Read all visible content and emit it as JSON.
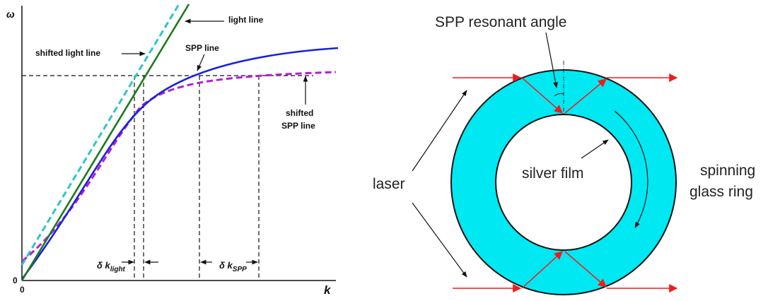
{
  "dispersion_plot": {
    "y_axis_symbol": "ω",
    "x_axis_symbol": "k",
    "origin_label_x": "0",
    "origin_label_y": "0",
    "labels": {
      "light_line": "light line",
      "shifted_light_line": "shifted light line",
      "spp_line": "SPP line",
      "shifted_spp_line_1": "shifted",
      "shifted_spp_line_2": "SPP line",
      "delta_k_light_symbol": "δ k",
      "delta_k_light_sub": "light",
      "delta_k_spp_symbol": "δ k",
      "delta_k_spp_sub": "SPP"
    },
    "colors": {
      "light_line": "#1e7a1e",
      "shifted_light_line": "#2ec4c8",
      "spp_line": "#1a22d8",
      "shifted_spp_line": "#b41ed2",
      "guides": "#111111"
    }
  },
  "ring_diagram": {
    "labels": {
      "spp_resonant_angle": "SPP resonant angle",
      "laser": "laser",
      "silver_film": "silver film",
      "spinning_1": "spinning",
      "spinning_2": "glass ring"
    },
    "colors": {
      "ring_fill": "#00e8f2",
      "laser_rays": "#ee1c1c",
      "outline": "#111111"
    }
  }
}
